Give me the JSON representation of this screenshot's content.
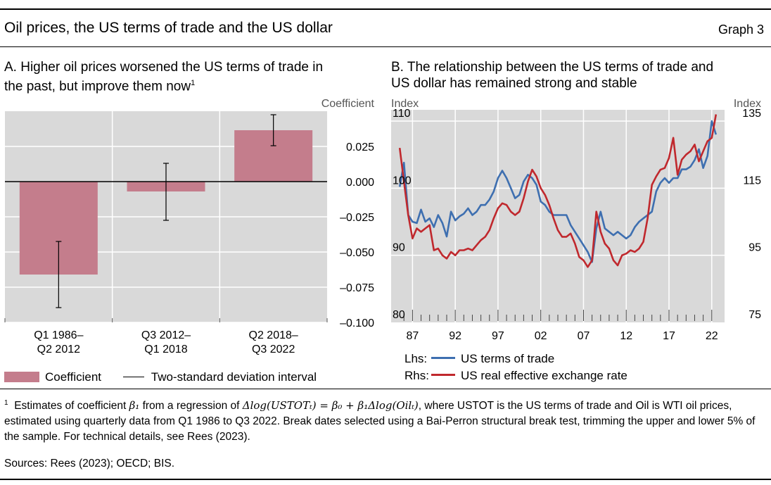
{
  "header": {
    "title": "Oil prices, the US terms of trade and the US dollar",
    "graph_no": "Graph 3"
  },
  "panel_a": {
    "title_line1": "A. Higher oil prices worsened the US terms of trade in",
    "title_line2": "the past, but improve them now",
    "title_sup": "1",
    "unit": "Coefficient",
    "legend": {
      "bar_label": "Coefficient",
      "line_label": "Two-standard deviation interval"
    },
    "colors": {
      "bar": "#c47d8c",
      "bg": "#d9d9d9",
      "grid": "#ffffff"
    }
  },
  "panel_b": {
    "title_line1": "B. The relationship between the US terms of trade and",
    "title_line2": "US dollar has remained strong and stable",
    "lhs_unit": "Index",
    "rhs_unit": "Index",
    "legend": {
      "lhs_prefix": "Lhs:",
      "lhs_label": "US terms of trade",
      "rhs_prefix": "Rhs:",
      "rhs_label": "US real effective exchange rate"
    },
    "colors": {
      "lhs": "#3e6fb0",
      "rhs": "#c0282d",
      "bg": "#d9d9d9",
      "grid": "#ffffff"
    }
  },
  "footnote": {
    "marker": "1",
    "text_before": "Estimates of coefficient ",
    "beta1": "β₁",
    "text_mid": " from a regression of ",
    "equation": "Δlog(USTOTₜ) = β₀ + β₁Δlog(Oilₜ)",
    "text_after": ", where USTOT is the US terms of trade and Oil is WTI oil prices, estimated using quarterly data from Q1 1986 to Q3 2022. Break dates selected using a Bai-Perron structural break test, trimming the upper and lower 5% of the sample. For technical details, see Rees (2023)."
  },
  "sources": "Sources: Rees (2023); OECD; BIS.",
  "chart_data": [
    {
      "type": "bar",
      "categories": [
        "Q1 1986–\nQ2 2012",
        "Q3 2012–\nQ1 2018",
        "Q2 2018–\nQ3 2022"
      ],
      "series": [
        {
          "name": "Coefficient",
          "values": [
            -0.066,
            -0.007,
            0.0365
          ]
        }
      ],
      "error_bars": [
        {
          "low": -0.0895,
          "high": -0.0425
        },
        {
          "low": -0.0275,
          "high": 0.013
        },
        {
          "low": 0.0255,
          "high": 0.0475
        }
      ],
      "ylim": [
        -0.1,
        0.05
      ],
      "yticks": [
        0.025,
        0.0,
        -0.025,
        -0.05,
        -0.075,
        -0.1
      ],
      "ytick_labels": [
        "0.025",
        "0.000",
        "–0.025",
        "–0.050",
        "–0.075",
        "–0.100"
      ],
      "ylabel": "Coefficient",
      "axis_side": "right",
      "grid": true
    },
    {
      "type": "line",
      "x": [
        1985.5,
        1986.0,
        1986.5,
        1987.0,
        1987.5,
        1988.0,
        1988.5,
        1989.0,
        1989.5,
        1990.0,
        1990.5,
        1991.0,
        1991.5,
        1992.0,
        1992.5,
        1993.0,
        1993.5,
        1994.0,
        1994.5,
        1995.0,
        1995.5,
        1996.0,
        1996.5,
        1997.0,
        1997.5,
        1998.0,
        1998.5,
        1999.0,
        1999.5,
        2000.0,
        2000.5,
        2001.0,
        2001.5,
        2002.0,
        2002.5,
        2003.0,
        2003.5,
        2004.0,
        2004.5,
        2005.0,
        2005.5,
        2006.0,
        2006.5,
        2007.0,
        2007.5,
        2008.0,
        2008.5,
        2009.0,
        2009.5,
        2010.0,
        2010.5,
        2011.0,
        2011.5,
        2012.0,
        2012.5,
        2013.0,
        2013.5,
        2014.0,
        2014.5,
        2015.0,
        2015.5,
        2016.0,
        2016.5,
        2017.0,
        2017.5,
        2018.0,
        2018.5,
        2019.0,
        2019.5,
        2020.0,
        2020.5,
        2021.0,
        2021.5,
        2022.0,
        2022.5
      ],
      "xticks": [
        87,
        92,
        97,
        2,
        7,
        12,
        17,
        22
      ],
      "xtick_labels": [
        "87",
        "92",
        "97",
        "02",
        "07",
        "12",
        "17",
        "22"
      ],
      "series": [
        {
          "name": "US terms of trade",
          "axis": "left",
          "values": [
            100.2,
            103.8,
            96.0,
            95.0,
            94.8,
            96.8,
            95.0,
            95.5,
            94.2,
            96.0,
            94.8,
            92.8,
            96.5,
            95.2,
            95.8,
            96.2,
            97.0,
            96.0,
            96.5,
            97.5,
            97.5,
            98.3,
            99.5,
            101.5,
            102.6,
            101.5,
            100.0,
            98.5,
            99.0,
            101.0,
            102.0,
            101.5,
            100.5,
            98.0,
            97.5,
            96.5,
            96.0,
            96.0,
            96.0,
            96.0,
            94.5,
            93.5,
            92.5,
            91.5,
            90.5,
            89.0,
            94.0,
            96.5,
            94.0,
            93.5,
            93.0,
            93.5,
            93.0,
            92.5,
            93.0,
            94.2,
            95.0,
            95.5,
            96.0,
            96.5,
            99.5,
            100.8,
            101.5,
            100.8,
            101.5,
            101.5,
            102.8,
            102.8,
            103.2,
            104.2,
            105.8,
            103.0,
            104.8,
            110.0,
            108.0
          ]
        },
        {
          "name": "US real effective exchange rate",
          "axis": "right",
          "values": [
            127.0,
            117.0,
            107.0,
            100.0,
            103.0,
            102.0,
            103.0,
            104.0,
            96.5,
            97.0,
            95.0,
            94.0,
            96.0,
            95.0,
            96.5,
            96.5,
            97.0,
            96.5,
            98.0,
            99.5,
            100.5,
            102.5,
            106.0,
            109.0,
            110.5,
            110.0,
            108.0,
            107.0,
            108.0,
            112.0,
            117.0,
            120.5,
            118.5,
            115.0,
            113.0,
            110.0,
            106.0,
            102.5,
            100.5,
            100.5,
            101.5,
            98.5,
            94.5,
            93.5,
            91.5,
            93.5,
            108.0,
            102.0,
            98.5,
            97.0,
            93.5,
            92.0,
            95.0,
            95.5,
            96.5,
            96.0,
            97.0,
            99.0,
            106.0,
            116.0,
            118.5,
            120.5,
            121.0,
            124.0,
            130.0,
            119.0,
            123.5,
            125.0,
            126.0,
            128.0,
            123.0,
            126.0,
            129.0,
            130.0,
            137.0
          ]
        }
      ],
      "ylim_left": [
        80,
        110
      ],
      "yticks_left": [
        80,
        90,
        100,
        110
      ],
      "ylim_right": [
        75,
        135
      ],
      "yticks_right": [
        75,
        95,
        115,
        135
      ],
      "ylabel_left": "Index",
      "ylabel_right": "Index",
      "grid": true
    }
  ]
}
